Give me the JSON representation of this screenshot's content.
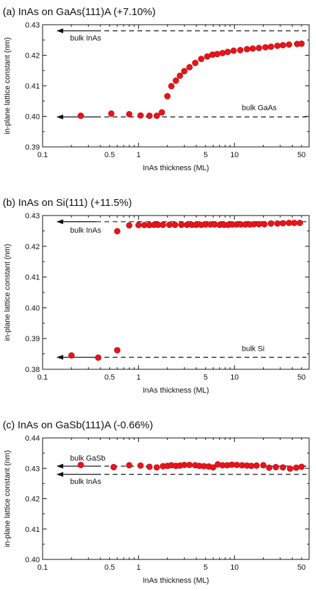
{
  "chart_data": [
    {
      "type": "scatter",
      "title": "(a) InAs on GaAs(111)A (+7.10%)",
      "xlabel": "InAs thickness (ML)",
      "ylabel": "in-plane lattice constant (nm)",
      "xscale": "log",
      "xlim": [
        0.1,
        60
      ],
      "ylim": [
        0.39,
        0.43
      ],
      "xticks": [
        0.1,
        0.5,
        1,
        5,
        10,
        50
      ],
      "xtick_labels": [
        "0.1",
        "0.5",
        "1",
        "5",
        "10",
        "50"
      ],
      "yticks": [
        0.39,
        0.4,
        0.41,
        0.42,
        0.43
      ],
      "ytick_labels": [
        "0.39",
        "0.40",
        "0.41",
        "0.42",
        "0.43"
      ],
      "marker_color": "#e8141b",
      "x": [
        0.25,
        0.52,
        0.8,
        1.05,
        1.3,
        1.55,
        1.75,
        2.0,
        2.2,
        2.45,
        2.7,
        3.0,
        3.4,
        3.9,
        4.5,
        5.2,
        5.9,
        6.6,
        7.5,
        8.5,
        9.8,
        11.5,
        13.5,
        15.5,
        18,
        21,
        24,
        28,
        32,
        37,
        45,
        50
      ],
      "y": [
        0.4002,
        0.4009,
        0.4007,
        0.4003,
        0.4002,
        0.4002,
        0.4013,
        0.4066,
        0.4099,
        0.4117,
        0.4133,
        0.4148,
        0.4161,
        0.4175,
        0.4188,
        0.4196,
        0.4202,
        0.4204,
        0.4207,
        0.4211,
        0.4215,
        0.4217,
        0.422,
        0.4222,
        0.4224,
        0.4226,
        0.4228,
        0.4231,
        0.4233,
        0.4235,
        0.4237,
        0.4238
      ],
      "reference_lines": [
        {
          "label": "bulk InAs",
          "value": 0.428
        },
        {
          "label": "bulk GaAs",
          "value": 0.3998
        }
      ]
    },
    {
      "type": "scatter",
      "title": "(b) InAs on Si(111) (+11.5%)",
      "xlabel": "InAs thickness (ML)",
      "ylabel": "in-plane lattice constant (nm)",
      "xscale": "log",
      "xlim": [
        0.1,
        60
      ],
      "ylim": [
        0.38,
        0.43
      ],
      "xticks": [
        0.1,
        0.5,
        1,
        5,
        10,
        50
      ],
      "xtick_labels": [
        "0.1",
        "0.5",
        "1",
        "5",
        "10",
        "50"
      ],
      "yticks": [
        0.38,
        0.39,
        0.4,
        0.41,
        0.42,
        0.43
      ],
      "ytick_labels": [
        "0.38",
        "0.39",
        "0.40",
        "0.41",
        "0.42",
        "0.43"
      ],
      "marker_color": "#e8141b",
      "x": [
        0.2,
        0.38,
        0.6,
        0.6,
        0.8,
        1.0,
        1.15,
        1.3,
        1.45,
        1.6,
        1.8,
        2.1,
        2.4,
        2.8,
        3.2,
        3.6,
        4.0,
        4.5,
        5.0,
        5.6,
        6.2,
        7.0,
        7.8,
        8.6,
        9.5,
        10.5,
        11.7,
        13.0,
        14.5,
        16,
        18,
        20.5,
        24,
        28,
        32,
        37,
        42,
        48
      ],
      "y": [
        0.3845,
        0.3838,
        0.3862,
        0.4249,
        0.4268,
        0.4269,
        0.4269,
        0.4269,
        0.427,
        0.427,
        0.427,
        0.427,
        0.427,
        0.427,
        0.427,
        0.427,
        0.427,
        0.427,
        0.4271,
        0.4271,
        0.4271,
        0.427,
        0.427,
        0.427,
        0.4271,
        0.4271,
        0.4271,
        0.4271,
        0.4271,
        0.4272,
        0.4272,
        0.4272,
        0.4274,
        0.4274,
        0.4275,
        0.4276,
        0.4276,
        0.4276
      ],
      "reference_lines": [
        {
          "label": "bulk InAs",
          "value": 0.428
        },
        {
          "label": "bulk Si",
          "value": 0.3839
        }
      ]
    },
    {
      "type": "scatter",
      "title": "(c) InAs on GaSb(111)A (-0.66%)",
      "xlabel": "InAs thickness (ML)",
      "ylabel": "in-plane lattice constant (nm)",
      "xscale": "log",
      "xlim": [
        0.1,
        60
      ],
      "ylim": [
        0.4,
        0.44
      ],
      "xticks": [
        0.1,
        0.5,
        1,
        5,
        10,
        50
      ],
      "xtick_labels": [
        "0.1",
        "0.5",
        "1",
        "5",
        "10",
        "50"
      ],
      "yticks": [
        0.4,
        0.41,
        0.42,
        0.43,
        0.44
      ],
      "ytick_labels": [
        "0.40",
        "0.41",
        "0.42",
        "0.43",
        "0.44"
      ],
      "marker_color": "#e8141b",
      "x": [
        0.25,
        0.55,
        0.8,
        1.05,
        1.3,
        1.55,
        1.8,
        2.0,
        2.2,
        2.45,
        2.7,
        3.0,
        3.4,
        3.9,
        4.3,
        4.8,
        5.4,
        6.0,
        6.7,
        7.5,
        8.4,
        9.4,
        10.6,
        12,
        13.5,
        15,
        17,
        20,
        23,
        27,
        32,
        38,
        44,
        50
      ],
      "y": [
        0.4311,
        0.4304,
        0.431,
        0.4309,
        0.4305,
        0.4303,
        0.4307,
        0.4308,
        0.431,
        0.4308,
        0.4309,
        0.4311,
        0.4311,
        0.431,
        0.4308,
        0.4307,
        0.4306,
        0.4303,
        0.4313,
        0.431,
        0.431,
        0.4312,
        0.4311,
        0.431,
        0.4309,
        0.4308,
        0.4309,
        0.431,
        0.4302,
        0.4304,
        0.4303,
        0.4299,
        0.4302,
        0.4305
      ],
      "reference_lines": [
        {
          "label": "bulk GaSb",
          "value": 0.4307
        },
        {
          "label": "bulk InAs",
          "value": 0.428
        }
      ]
    }
  ]
}
